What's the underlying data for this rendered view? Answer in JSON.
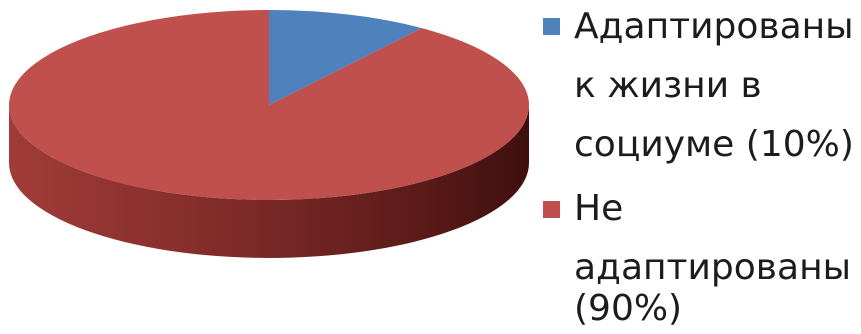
{
  "chart_data": {
    "type": "pie",
    "style": "3d-exploded-none",
    "categories": [
      "Адаптированы к жизни в социуме (10%)",
      "Не адаптированы (90%)"
    ],
    "values": [
      10,
      90
    ],
    "colors": [
      "#4f81bd",
      "#c0504d"
    ],
    "start": "12 o'clock, clockwise",
    "legend_placement": "right",
    "legend": [
      {
        "color": "#4f81bd",
        "lines": [
          "Адаптированы",
          "к жизни в",
          "социуме (10%)"
        ]
      },
      {
        "color": "#c0504d",
        "lines": [
          "Не",
          "адаптированы",
          "(90%)"
        ]
      }
    ]
  }
}
